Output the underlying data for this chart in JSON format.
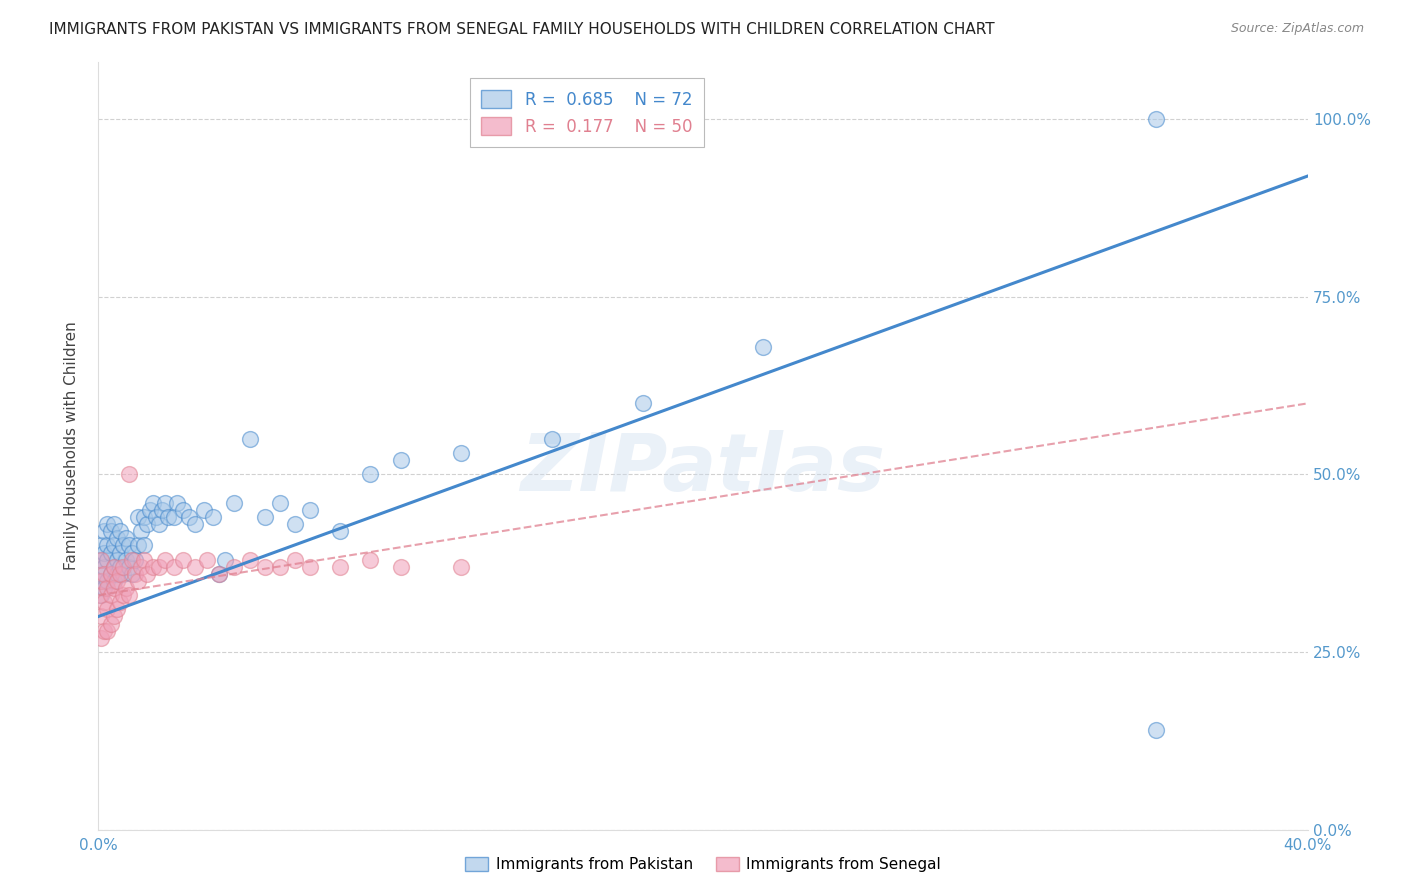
{
  "title": "IMMIGRANTS FROM PAKISTAN VS IMMIGRANTS FROM SENEGAL FAMILY HOUSEHOLDS WITH CHILDREN CORRELATION CHART",
  "source": "Source: ZipAtlas.com",
  "ylabel": "Family Households with Children",
  "xlim": [
    0.0,
    0.4
  ],
  "ylim": [
    0.0,
    1.08
  ],
  "ytick_vals": [
    0.0,
    0.25,
    0.5,
    0.75,
    1.0
  ],
  "ytick_labels": [
    "0.0%",
    "25.0%",
    "50.0%",
    "75.0%",
    "100.0%"
  ],
  "xtick_vals": [
    0.0,
    0.05,
    0.1,
    0.15,
    0.2,
    0.25,
    0.3,
    0.35,
    0.4
  ],
  "xtick_labels": [
    "0.0%",
    "",
    "",
    "",
    "",
    "",
    "",
    "",
    "40.0%"
  ],
  "background_color": "#ffffff",
  "grid_color": "#cccccc",
  "watermark": "ZIPatlas",
  "pakistan_color": "#a8c8e8",
  "senegal_color": "#f0a0b8",
  "pakistan_line_color": "#4488cc",
  "senegal_line_color": "#e08090",
  "legend_pakistan_R": "0.685",
  "legend_pakistan_N": "72",
  "legend_senegal_R": "0.177",
  "legend_senegal_N": "50",
  "pak_line_x0": 0.0,
  "pak_line_y0": 0.3,
  "pak_line_x1": 0.4,
  "pak_line_y1": 0.92,
  "sen_line_x0": 0.0,
  "sen_line_y0": 0.33,
  "sen_line_x1": 0.4,
  "sen_line_y1": 0.6,
  "pakistan_scatter_x": [
    0.0005,
    0.001,
    0.001,
    0.001,
    0.001,
    0.002,
    0.002,
    0.002,
    0.002,
    0.003,
    0.003,
    0.003,
    0.003,
    0.004,
    0.004,
    0.004,
    0.005,
    0.005,
    0.005,
    0.005,
    0.006,
    0.006,
    0.006,
    0.007,
    0.007,
    0.007,
    0.008,
    0.008,
    0.009,
    0.009,
    0.01,
    0.01,
    0.011,
    0.011,
    0.012,
    0.013,
    0.013,
    0.014,
    0.015,
    0.015,
    0.016,
    0.017,
    0.018,
    0.019,
    0.02,
    0.021,
    0.022,
    0.023,
    0.025,
    0.026,
    0.028,
    0.03,
    0.032,
    0.035,
    0.038,
    0.04,
    0.042,
    0.045,
    0.05,
    0.055,
    0.06,
    0.065,
    0.07,
    0.08,
    0.09,
    0.1,
    0.12,
    0.15,
    0.18,
    0.22,
    0.35,
    0.35
  ],
  "pakistan_scatter_y": [
    0.35,
    0.33,
    0.36,
    0.38,
    0.4,
    0.34,
    0.37,
    0.39,
    0.42,
    0.35,
    0.38,
    0.4,
    0.43,
    0.36,
    0.39,
    0.42,
    0.35,
    0.37,
    0.4,
    0.43,
    0.36,
    0.38,
    0.41,
    0.37,
    0.39,
    0.42,
    0.36,
    0.4,
    0.38,
    0.41,
    0.37,
    0.4,
    0.36,
    0.39,
    0.38,
    0.4,
    0.44,
    0.42,
    0.4,
    0.44,
    0.43,
    0.45,
    0.46,
    0.44,
    0.43,
    0.45,
    0.46,
    0.44,
    0.44,
    0.46,
    0.45,
    0.44,
    0.43,
    0.45,
    0.44,
    0.36,
    0.38,
    0.46,
    0.55,
    0.44,
    0.46,
    0.43,
    0.45,
    0.42,
    0.5,
    0.52,
    0.53,
    0.55,
    0.6,
    0.68,
    0.14,
    1.0
  ],
  "senegal_scatter_x": [
    0.0005,
    0.001,
    0.001,
    0.001,
    0.001,
    0.002,
    0.002,
    0.002,
    0.003,
    0.003,
    0.003,
    0.004,
    0.004,
    0.004,
    0.005,
    0.005,
    0.005,
    0.006,
    0.006,
    0.007,
    0.007,
    0.008,
    0.008,
    0.009,
    0.01,
    0.01,
    0.011,
    0.012,
    0.013,
    0.014,
    0.015,
    0.016,
    0.018,
    0.02,
    0.022,
    0.025,
    0.028,
    0.032,
    0.036,
    0.04,
    0.045,
    0.05,
    0.055,
    0.06,
    0.065,
    0.07,
    0.08,
    0.09,
    0.1,
    0.12
  ],
  "senegal_scatter_y": [
    0.33,
    0.3,
    0.27,
    0.35,
    0.38,
    0.28,
    0.32,
    0.36,
    0.28,
    0.31,
    0.34,
    0.29,
    0.33,
    0.36,
    0.3,
    0.34,
    0.37,
    0.31,
    0.35,
    0.32,
    0.36,
    0.33,
    0.37,
    0.34,
    0.33,
    0.5,
    0.38,
    0.36,
    0.35,
    0.37,
    0.38,
    0.36,
    0.37,
    0.37,
    0.38,
    0.37,
    0.38,
    0.37,
    0.38,
    0.36,
    0.37,
    0.38,
    0.37,
    0.37,
    0.38,
    0.37,
    0.37,
    0.38,
    0.37,
    0.37
  ],
  "tick_label_color": "#5599cc",
  "axis_label_color": "#444444",
  "title_fontsize": 11,
  "source_fontsize": 9,
  "tick_fontsize": 11,
  "legend_fontsize": 12
}
